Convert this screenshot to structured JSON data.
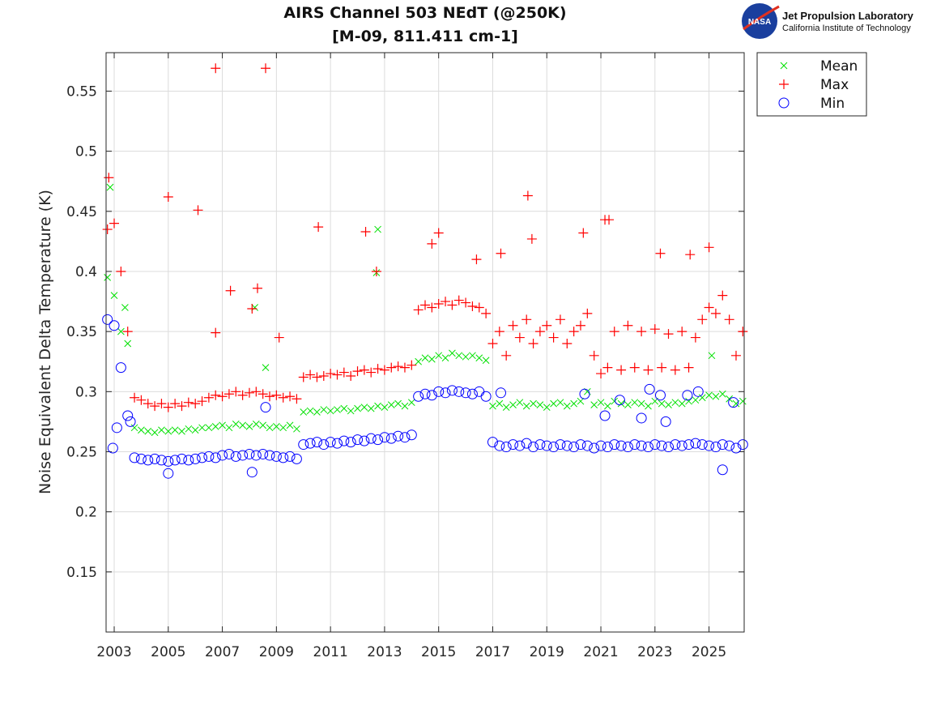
{
  "chart_data": {
    "type": "scatter",
    "title": "AIRS Channel 503 NEdT (@250K)",
    "subtitle": "[M-09, 811.411 cm-1]",
    "xlabel": "",
    "ylabel": "Noise Equivalent Delta Temperature (K)",
    "xlim": [
      2002.7,
      2026.3
    ],
    "ylim": [
      0.1,
      0.582
    ],
    "xticks": [
      "2003",
      "2005",
      "2007",
      "2009",
      "2011",
      "2013",
      "2015",
      "2017",
      "2019",
      "2021",
      "2023",
      "2025"
    ],
    "yticks": [
      "0.15",
      "0.2",
      "0.25",
      "0.3",
      "0.35",
      "0.4",
      "0.45",
      "0.5",
      "0.55"
    ],
    "grid": true,
    "legend_position": "outside-top-right",
    "x": [
      2002.75,
      2003,
      2003.25,
      2003.5,
      2003.75,
      2004,
      2004.25,
      2004.5,
      2004.75,
      2005,
      2005.25,
      2005.5,
      2005.75,
      2006,
      2006.25,
      2006.5,
      2006.75,
      2007,
      2007.25,
      2007.5,
      2007.75,
      2008,
      2008.25,
      2008.5,
      2008.75,
      2009,
      2009.25,
      2009.5,
      2009.75,
      2010,
      2010.25,
      2010.5,
      2010.75,
      2011,
      2011.25,
      2011.5,
      2011.75,
      2012,
      2012.25,
      2012.5,
      2012.75,
      2013,
      2013.25,
      2013.5,
      2013.75,
      2014,
      2014.25,
      2014.5,
      2014.75,
      2015,
      2015.25,
      2015.5,
      2015.75,
      2016,
      2016.25,
      2016.5,
      2016.75,
      2017,
      2017.25,
      2017.5,
      2017.75,
      2018,
      2018.25,
      2018.5,
      2018.75,
      2019,
      2019.25,
      2019.5,
      2019.75,
      2020,
      2020.25,
      2020.5,
      2020.75,
      2021,
      2021.25,
      2021.5,
      2021.75,
      2022,
      2022.25,
      2022.5,
      2022.75,
      2023,
      2023.25,
      2023.5,
      2023.75,
      2024,
      2024.25,
      2024.5,
      2024.75,
      2025,
      2025.25,
      2025.5,
      2025.75,
      2026,
      2026.25
    ],
    "series": [
      {
        "name": "Mean",
        "marker": "x",
        "color": "#00e000",
        "values": [
          0.395,
          0.38,
          0.35,
          0.34,
          0.27,
          0.268,
          0.267,
          0.266,
          0.268,
          0.267,
          0.268,
          0.267,
          0.269,
          0.268,
          0.27,
          0.27,
          0.271,
          0.272,
          0.27,
          0.273,
          0.272,
          0.271,
          0.273,
          0.272,
          0.27,
          0.271,
          0.27,
          0.272,
          0.269,
          0.283,
          0.284,
          0.283,
          0.285,
          0.284,
          0.285,
          0.286,
          0.284,
          0.286,
          0.287,
          0.286,
          0.288,
          0.287,
          0.289,
          0.29,
          0.288,
          0.291,
          0.325,
          0.328,
          0.327,
          0.33,
          0.328,
          0.332,
          0.33,
          0.329,
          0.33,
          0.328,
          0.326,
          0.288,
          0.29,
          0.287,
          0.289,
          0.291,
          0.288,
          0.29,
          0.289,
          0.287,
          0.29,
          0.291,
          0.288,
          0.29,
          0.292,
          0.3,
          0.289,
          0.291,
          0.288,
          0.292,
          0.29,
          0.289,
          0.291,
          0.29,
          0.288,
          0.292,
          0.29,
          0.289,
          0.291,
          0.29,
          0.292,
          0.293,
          0.295,
          0.297,
          0.296,
          0.298,
          0.294,
          0.29,
          0.292
        ],
        "extra_points": [
          [
            2002.85,
            0.47
          ],
          [
            2012.75,
            0.435
          ],
          [
            2012.7,
            0.399
          ],
          [
            2008.2,
            0.37
          ],
          [
            2008.6,
            0.32
          ],
          [
            2025.1,
            0.33
          ],
          [
            2003.4,
            0.37
          ]
        ]
      },
      {
        "name": "Max",
        "marker": "+",
        "color": "#ff0000",
        "values": [
          0.435,
          0.44,
          0.4,
          0.35,
          0.295,
          0.293,
          0.29,
          0.288,
          0.29,
          0.287,
          0.29,
          0.288,
          0.291,
          0.29,
          0.292,
          0.295,
          0.297,
          0.296,
          0.298,
          0.3,
          0.297,
          0.299,
          0.3,
          0.298,
          0.296,
          0.297,
          0.295,
          0.296,
          0.294,
          0.312,
          0.314,
          0.312,
          0.313,
          0.315,
          0.314,
          0.316,
          0.313,
          0.317,
          0.318,
          0.316,
          0.319,
          0.318,
          0.32,
          0.321,
          0.32,
          0.322,
          0.368,
          0.372,
          0.37,
          0.373,
          0.375,
          0.372,
          0.376,
          0.374,
          0.371,
          0.37,
          0.365,
          0.34,
          0.35,
          0.33,
          0.355,
          0.345,
          0.36,
          0.34,
          0.35,
          0.355,
          0.345,
          0.36,
          0.34,
          0.35,
          0.355,
          0.365,
          0.33,
          0.315,
          0.32,
          0.35,
          0.318,
          0.355,
          0.32,
          0.35,
          0.318,
          0.352,
          0.32,
          0.348,
          0.318,
          0.35,
          0.32,
          0.345,
          0.36,
          0.37,
          0.365,
          0.38,
          0.36,
          0.33,
          0.35
        ],
        "extra_points": [
          [
            2002.8,
            0.478
          ],
          [
            2005.0,
            0.462
          ],
          [
            2006.1,
            0.451
          ],
          [
            2006.75,
            0.569
          ],
          [
            2008.6,
            0.569
          ],
          [
            2008.3,
            0.386
          ],
          [
            2007.3,
            0.384
          ],
          [
            2010.55,
            0.437
          ],
          [
            2012.3,
            0.433
          ],
          [
            2012.7,
            0.4
          ],
          [
            2014.75,
            0.423
          ],
          [
            2015.0,
            0.432
          ],
          [
            2018.3,
            0.463
          ],
          [
            2018.45,
            0.427
          ],
          [
            2020.35,
            0.432
          ],
          [
            2021.15,
            0.443
          ],
          [
            2021.3,
            0.443
          ],
          [
            2025.0,
            0.42
          ],
          [
            2024.3,
            0.414
          ],
          [
            2023.2,
            0.415
          ],
          [
            2006.75,
            0.349
          ],
          [
            2008.1,
            0.369
          ],
          [
            2009.1,
            0.345
          ],
          [
            2016.4,
            0.41
          ],
          [
            2017.3,
            0.415
          ]
        ]
      },
      {
        "name": "Min",
        "marker": "o",
        "color": "#0000ff",
        "values": [
          0.36,
          0.355,
          0.32,
          0.28,
          0.245,
          0.244,
          0.243,
          0.244,
          0.243,
          0.242,
          0.243,
          0.244,
          0.243,
          0.244,
          0.245,
          0.246,
          0.245,
          0.247,
          0.248,
          0.246,
          0.247,
          0.248,
          0.247,
          0.248,
          0.247,
          0.246,
          0.245,
          0.246,
          0.244,
          0.256,
          0.257,
          0.258,
          0.256,
          0.258,
          0.257,
          0.259,
          0.258,
          0.26,
          0.259,
          0.261,
          0.26,
          0.262,
          0.261,
          0.263,
          0.262,
          0.264,
          0.296,
          0.298,
          0.297,
          0.3,
          0.299,
          0.301,
          0.3,
          0.299,
          0.298,
          0.3,
          0.296,
          0.258,
          0.255,
          0.254,
          0.256,
          0.255,
          0.257,
          0.254,
          0.256,
          0.255,
          0.254,
          0.256,
          0.255,
          0.254,
          0.256,
          0.255,
          0.253,
          0.255,
          0.254,
          0.256,
          0.255,
          0.254,
          0.256,
          0.255,
          0.254,
          0.256,
          0.255,
          0.254,
          0.256,
          0.255,
          0.256,
          0.257,
          0.256,
          0.255,
          0.254,
          0.256,
          0.255,
          0.253,
          0.256
        ],
        "extra_points": [
          [
            2002.95,
            0.253
          ],
          [
            2008.6,
            0.287
          ],
          [
            2017.3,
            0.299
          ],
          [
            2021.15,
            0.28
          ],
          [
            2022.5,
            0.278
          ],
          [
            2023.4,
            0.275
          ],
          [
            2021.7,
            0.293
          ],
          [
            2024.6,
            0.3
          ],
          [
            2025.5,
            0.235
          ],
          [
            2025.9,
            0.291
          ],
          [
            2020.4,
            0.298
          ],
          [
            2022.8,
            0.302
          ],
          [
            2023.2,
            0.297
          ],
          [
            2024.2,
            0.297
          ],
          [
            2003.1,
            0.27
          ],
          [
            2003.6,
            0.275
          ],
          [
            2005.0,
            0.232
          ],
          [
            2008.1,
            0.233
          ]
        ]
      }
    ]
  },
  "logo": {
    "emblem_text": "NASA",
    "line1": "Jet Propulsion Laboratory",
    "line2": "California Institute of Technology"
  }
}
